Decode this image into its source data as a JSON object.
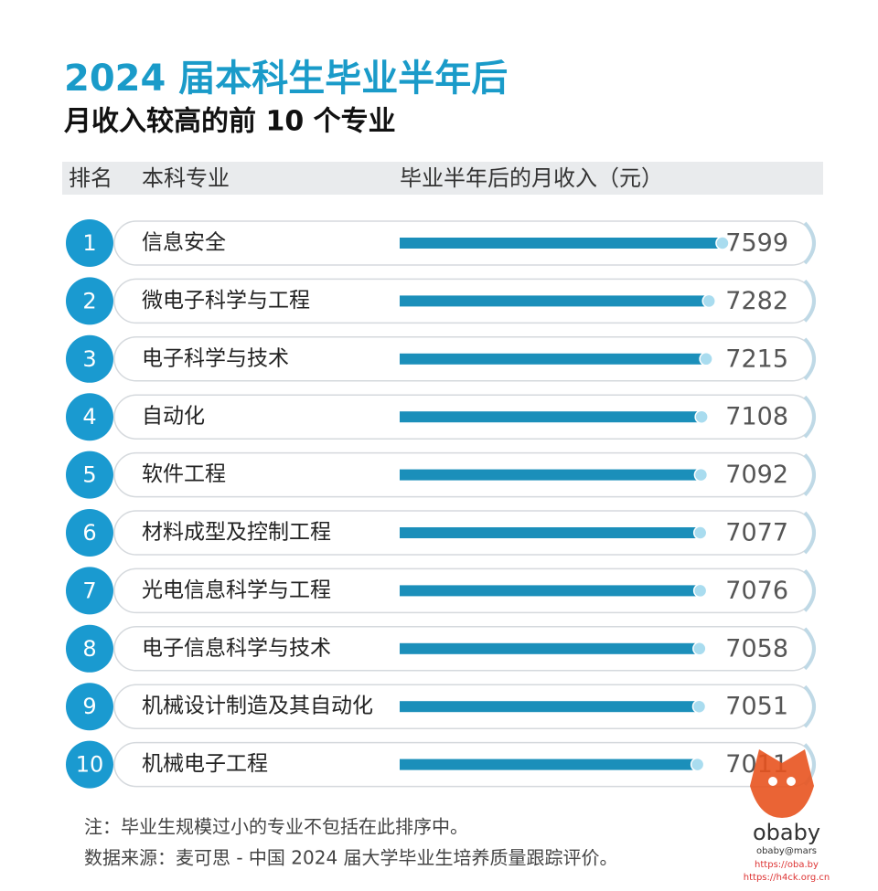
{
  "chart_data": {
    "type": "bar",
    "orientation": "horizontal",
    "title": "2024 届本科生毕业半年后",
    "subtitle": "月收入较高的前 10 个专业",
    "headers": [
      "排名",
      "本科专业",
      "毕业半年后的月收入（元）"
    ],
    "ranks": [
      1,
      2,
      3,
      4,
      5,
      6,
      7,
      8,
      9,
      10
    ],
    "categories": [
      "信息安全",
      "微电子科学与工程",
      "电子科学与技术",
      "自动化",
      "软件工程",
      "材料成型及控制工程",
      "光电信息科学与工程",
      "电子信息科学与技术",
      "机械设计制造及其自动化",
      "机械电子工程"
    ],
    "values": [
      7599,
      7282,
      7215,
      7108,
      7092,
      7077,
      7076,
      7058,
      7051,
      7011
    ],
    "xlim": [
      0,
      7600
    ],
    "color": "#1b8fba",
    "rank_color": "#1a9ad0",
    "notes": [
      "注：毕业生规模过小的专业不包括在此排序中。",
      "数据来源：麦可思 - 中国 2024 届大学毕业生培养质量跟踪评价。"
    ],
    "watermark": [
      "obaby",
      "obaby@mars",
      "https://oba.by",
      "https://h4ck.org.cn"
    ]
  }
}
